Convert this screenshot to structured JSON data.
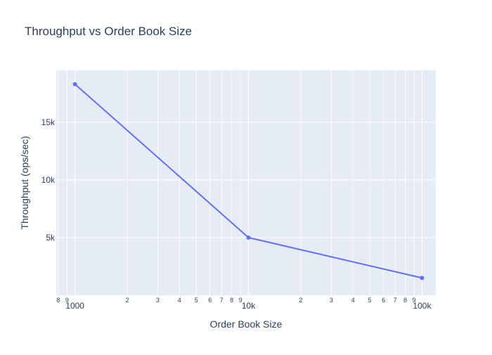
{
  "chart_data": {
    "type": "line",
    "title": "Throughput vs Order Book Size",
    "xlabel": "Order Book Size",
    "ylabel": "Throughput (ops/sec)",
    "x_scale": "log",
    "xlim": [
      780,
      120000
    ],
    "ylim": [
      0,
      19500
    ],
    "x_major_ticks": [
      {
        "value": 1000,
        "label": "1000"
      },
      {
        "value": 10000,
        "label": "10k"
      },
      {
        "value": 100000,
        "label": "100k"
      }
    ],
    "x_minor_ticks": [
      {
        "value": 800,
        "label": "8"
      },
      {
        "value": 900,
        "label": "9"
      },
      {
        "value": 2000,
        "label": "2"
      },
      {
        "value": 3000,
        "label": "3"
      },
      {
        "value": 4000,
        "label": "4"
      },
      {
        "value": 5000,
        "label": "5"
      },
      {
        "value": 6000,
        "label": "6"
      },
      {
        "value": 7000,
        "label": "7"
      },
      {
        "value": 8000,
        "label": "8"
      },
      {
        "value": 9000,
        "label": "9"
      },
      {
        "value": 20000,
        "label": "2"
      },
      {
        "value": 30000,
        "label": "3"
      },
      {
        "value": 40000,
        "label": "4"
      },
      {
        "value": 50000,
        "label": "5"
      },
      {
        "value": 60000,
        "label": "6"
      },
      {
        "value": 70000,
        "label": "7"
      },
      {
        "value": 80000,
        "label": "8"
      },
      {
        "value": 90000,
        "label": "9"
      }
    ],
    "y_ticks": [
      {
        "value": 5000,
        "label": "5k"
      },
      {
        "value": 10000,
        "label": "10k"
      },
      {
        "value": 15000,
        "label": "15k"
      }
    ],
    "grid": true,
    "series": [
      {
        "x": [
          1000,
          10000,
          100000
        ],
        "y": [
          18300,
          5000,
          1500
        ],
        "color": "#636efa"
      }
    ],
    "colors": {
      "plot_background": "#e5ecf6",
      "grid": "#ffffff",
      "text": "#2a3f5f"
    }
  }
}
